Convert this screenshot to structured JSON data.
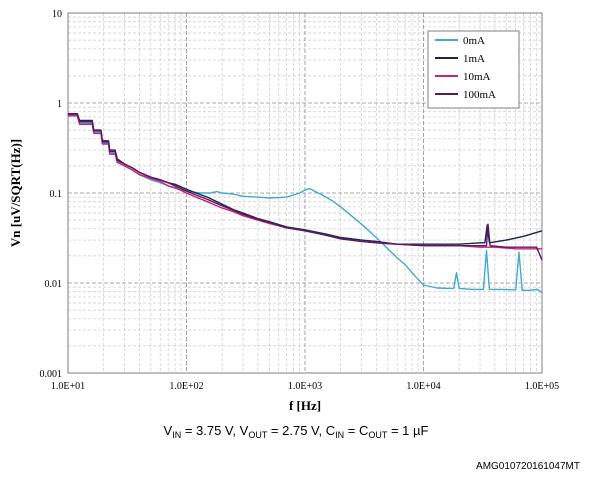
{
  "chart_data": {
    "type": "line",
    "xscale": "log",
    "yscale": "log",
    "xlim": [
      10,
      100000
    ],
    "ylim": [
      0.001,
      10
    ],
    "xlabel": "f [Hz]",
    "ylabel": "Vn [uV/SQRT(Hz)]",
    "x_ticks": [
      "1.0E+01",
      "1.0E+02",
      "1.0E+03",
      "1.0E+04",
      "1.0E+05"
    ],
    "y_ticks": [
      "0.001",
      "0.01",
      "0.1",
      "1",
      "10"
    ],
    "grid": "major and minor",
    "legend": "top-right",
    "series": [
      {
        "name": "0mA",
        "color": "#41a9d4",
        "points": [
          [
            10,
            0.74
          ],
          [
            12,
            0.74
          ],
          [
            12.5,
            0.6
          ],
          [
            16,
            0.6
          ],
          [
            16.5,
            0.47
          ],
          [
            19,
            0.47
          ],
          [
            19.5,
            0.36
          ],
          [
            22,
            0.36
          ],
          [
            22.5,
            0.28
          ],
          [
            25,
            0.28
          ],
          [
            26,
            0.22
          ],
          [
            30,
            0.2
          ],
          [
            35,
            0.18
          ],
          [
            40,
            0.16
          ],
          [
            50,
            0.14
          ],
          [
            60,
            0.13
          ],
          [
            70,
            0.12
          ],
          [
            85,
            0.11
          ],
          [
            100,
            0.105
          ],
          [
            130,
            0.1
          ],
          [
            160,
            0.1
          ],
          [
            180,
            0.104
          ],
          [
            200,
            0.1
          ],
          [
            250,
            0.097
          ],
          [
            300,
            0.092
          ],
          [
            400,
            0.09
          ],
          [
            500,
            0.088
          ],
          [
            600,
            0.089
          ],
          [
            700,
            0.09
          ],
          [
            800,
            0.095
          ],
          [
            900,
            0.1
          ],
          [
            1000,
            0.108
          ],
          [
            1100,
            0.112
          ],
          [
            1200,
            0.105
          ],
          [
            1400,
            0.095
          ],
          [
            1700,
            0.082
          ],
          [
            2000,
            0.07
          ],
          [
            2500,
            0.055
          ],
          [
            3000,
            0.045
          ],
          [
            4000,
            0.032
          ],
          [
            5000,
            0.024
          ],
          [
            6000,
            0.019
          ],
          [
            7000,
            0.016
          ],
          [
            8000,
            0.013
          ],
          [
            9000,
            0.011
          ],
          [
            10000,
            0.0095
          ],
          [
            13000,
            0.0088
          ],
          [
            16000,
            0.0087
          ],
          [
            18000,
            0.0087
          ],
          [
            19000,
            0.013
          ],
          [
            20000,
            0.0087
          ],
          [
            26000,
            0.0085
          ],
          [
            32000,
            0.0085
          ],
          [
            34000,
            0.023
          ],
          [
            36000,
            0.0085
          ],
          [
            45000,
            0.0085
          ],
          [
            55000,
            0.0084
          ],
          [
            60000,
            0.0084
          ],
          [
            64000,
            0.022
          ],
          [
            68000,
            0.0083
          ],
          [
            80000,
            0.0083
          ],
          [
            92000,
            0.0085
          ],
          [
            100000,
            0.0078
          ]
        ]
      },
      {
        "name": "1mA",
        "color": "#1a2450",
        "points": [
          [
            10,
            0.76
          ],
          [
            12,
            0.76
          ],
          [
            12.5,
            0.64
          ],
          [
            16,
            0.64
          ],
          [
            16.5,
            0.5
          ],
          [
            19,
            0.5
          ],
          [
            19.5,
            0.38
          ],
          [
            22,
            0.38
          ],
          [
            22.5,
            0.3
          ],
          [
            25,
            0.3
          ],
          [
            26,
            0.24
          ],
          [
            30,
            0.21
          ],
          [
            35,
            0.19
          ],
          [
            40,
            0.17
          ],
          [
            50,
            0.15
          ],
          [
            60,
            0.14
          ],
          [
            70,
            0.13
          ],
          [
            80,
            0.125
          ],
          [
            100,
            0.11
          ],
          [
            120,
            0.1
          ],
          [
            150,
            0.09
          ],
          [
            200,
            0.075
          ],
          [
            250,
            0.065
          ],
          [
            300,
            0.06
          ],
          [
            400,
            0.052
          ],
          [
            500,
            0.048
          ],
          [
            700,
            0.042
          ],
          [
            1000,
            0.039
          ],
          [
            1500,
            0.035
          ],
          [
            2000,
            0.032
          ],
          [
            3000,
            0.03
          ],
          [
            4000,
            0.029
          ],
          [
            6000,
            0.027
          ],
          [
            10000,
            0.027
          ],
          [
            20000,
            0.027
          ],
          [
            30000,
            0.028
          ],
          [
            33000,
            0.028
          ],
          [
            34500,
            0.044
          ],
          [
            36000,
            0.028
          ],
          [
            50000,
            0.03
          ],
          [
            70000,
            0.033
          ],
          [
            100000,
            0.038
          ]
        ]
      },
      {
        "name": "10mA",
        "color": "#cc1f7a",
        "points": [
          [
            10,
            0.72
          ],
          [
            12,
            0.72
          ],
          [
            12.5,
            0.58
          ],
          [
            16,
            0.58
          ],
          [
            16.5,
            0.46
          ],
          [
            19,
            0.46
          ],
          [
            19.5,
            0.35
          ],
          [
            22,
            0.35
          ],
          [
            22.5,
            0.27
          ],
          [
            25,
            0.27
          ],
          [
            26,
            0.22
          ],
          [
            30,
            0.2
          ],
          [
            35,
            0.18
          ],
          [
            40,
            0.16
          ],
          [
            50,
            0.145
          ],
          [
            60,
            0.135
          ],
          [
            70,
            0.12
          ],
          [
            80,
            0.115
          ],
          [
            100,
            0.1
          ],
          [
            120,
            0.09
          ],
          [
            150,
            0.08
          ],
          [
            200,
            0.068
          ],
          [
            250,
            0.062
          ],
          [
            300,
            0.056
          ],
          [
            400,
            0.05
          ],
          [
            500,
            0.046
          ],
          [
            700,
            0.041
          ],
          [
            1000,
            0.038
          ],
          [
            1500,
            0.034
          ],
          [
            2000,
            0.031
          ],
          [
            3000,
            0.029
          ],
          [
            4000,
            0.028
          ],
          [
            6000,
            0.027
          ],
          [
            10000,
            0.026
          ],
          [
            20000,
            0.026
          ],
          [
            30000,
            0.025
          ],
          [
            40000,
            0.025
          ],
          [
            60000,
            0.024
          ],
          [
            80000,
            0.024
          ],
          [
            100000,
            0.024
          ]
        ]
      },
      {
        "name": "100mA",
        "color": "#5c1a5e",
        "points": [
          [
            10,
            0.75
          ],
          [
            12,
            0.75
          ],
          [
            12.5,
            0.62
          ],
          [
            16,
            0.62
          ],
          [
            16.5,
            0.49
          ],
          [
            19,
            0.49
          ],
          [
            19.5,
            0.37
          ],
          [
            22,
            0.37
          ],
          [
            22.5,
            0.29
          ],
          [
            25,
            0.29
          ],
          [
            26,
            0.23
          ],
          [
            30,
            0.21
          ],
          [
            35,
            0.19
          ],
          [
            40,
            0.17
          ],
          [
            50,
            0.15
          ],
          [
            60,
            0.14
          ],
          [
            70,
            0.13
          ],
          [
            80,
            0.12
          ],
          [
            100,
            0.105
          ],
          [
            120,
            0.095
          ],
          [
            150,
            0.085
          ],
          [
            200,
            0.072
          ],
          [
            250,
            0.064
          ],
          [
            300,
            0.058
          ],
          [
            400,
            0.051
          ],
          [
            500,
            0.047
          ],
          [
            700,
            0.041
          ],
          [
            1000,
            0.038
          ],
          [
            1500,
            0.034
          ],
          [
            2000,
            0.031
          ],
          [
            3000,
            0.029
          ],
          [
            4000,
            0.028
          ],
          [
            6000,
            0.027
          ],
          [
            10000,
            0.026
          ],
          [
            20000,
            0.026
          ],
          [
            30000,
            0.026
          ],
          [
            34000,
            0.026
          ],
          [
            35000,
            0.045
          ],
          [
            36500,
            0.026
          ],
          [
            50000,
            0.025
          ],
          [
            70000,
            0.025
          ],
          [
            90000,
            0.025
          ],
          [
            100000,
            0.018
          ]
        ]
      }
    ]
  },
  "caption": {
    "vin_label": "V",
    "vin_sub": "IN",
    "vin_value": " = 3.75 V, V",
    "vout_sub": "OUT",
    "vout_value": " = 2.75 V, C",
    "cin_sub": "IN",
    "cin_eq": " = C",
    "cout_sub": "OUT",
    "cout_value": " = 1 µF"
  },
  "reference_id": "AMG010720161047MT"
}
